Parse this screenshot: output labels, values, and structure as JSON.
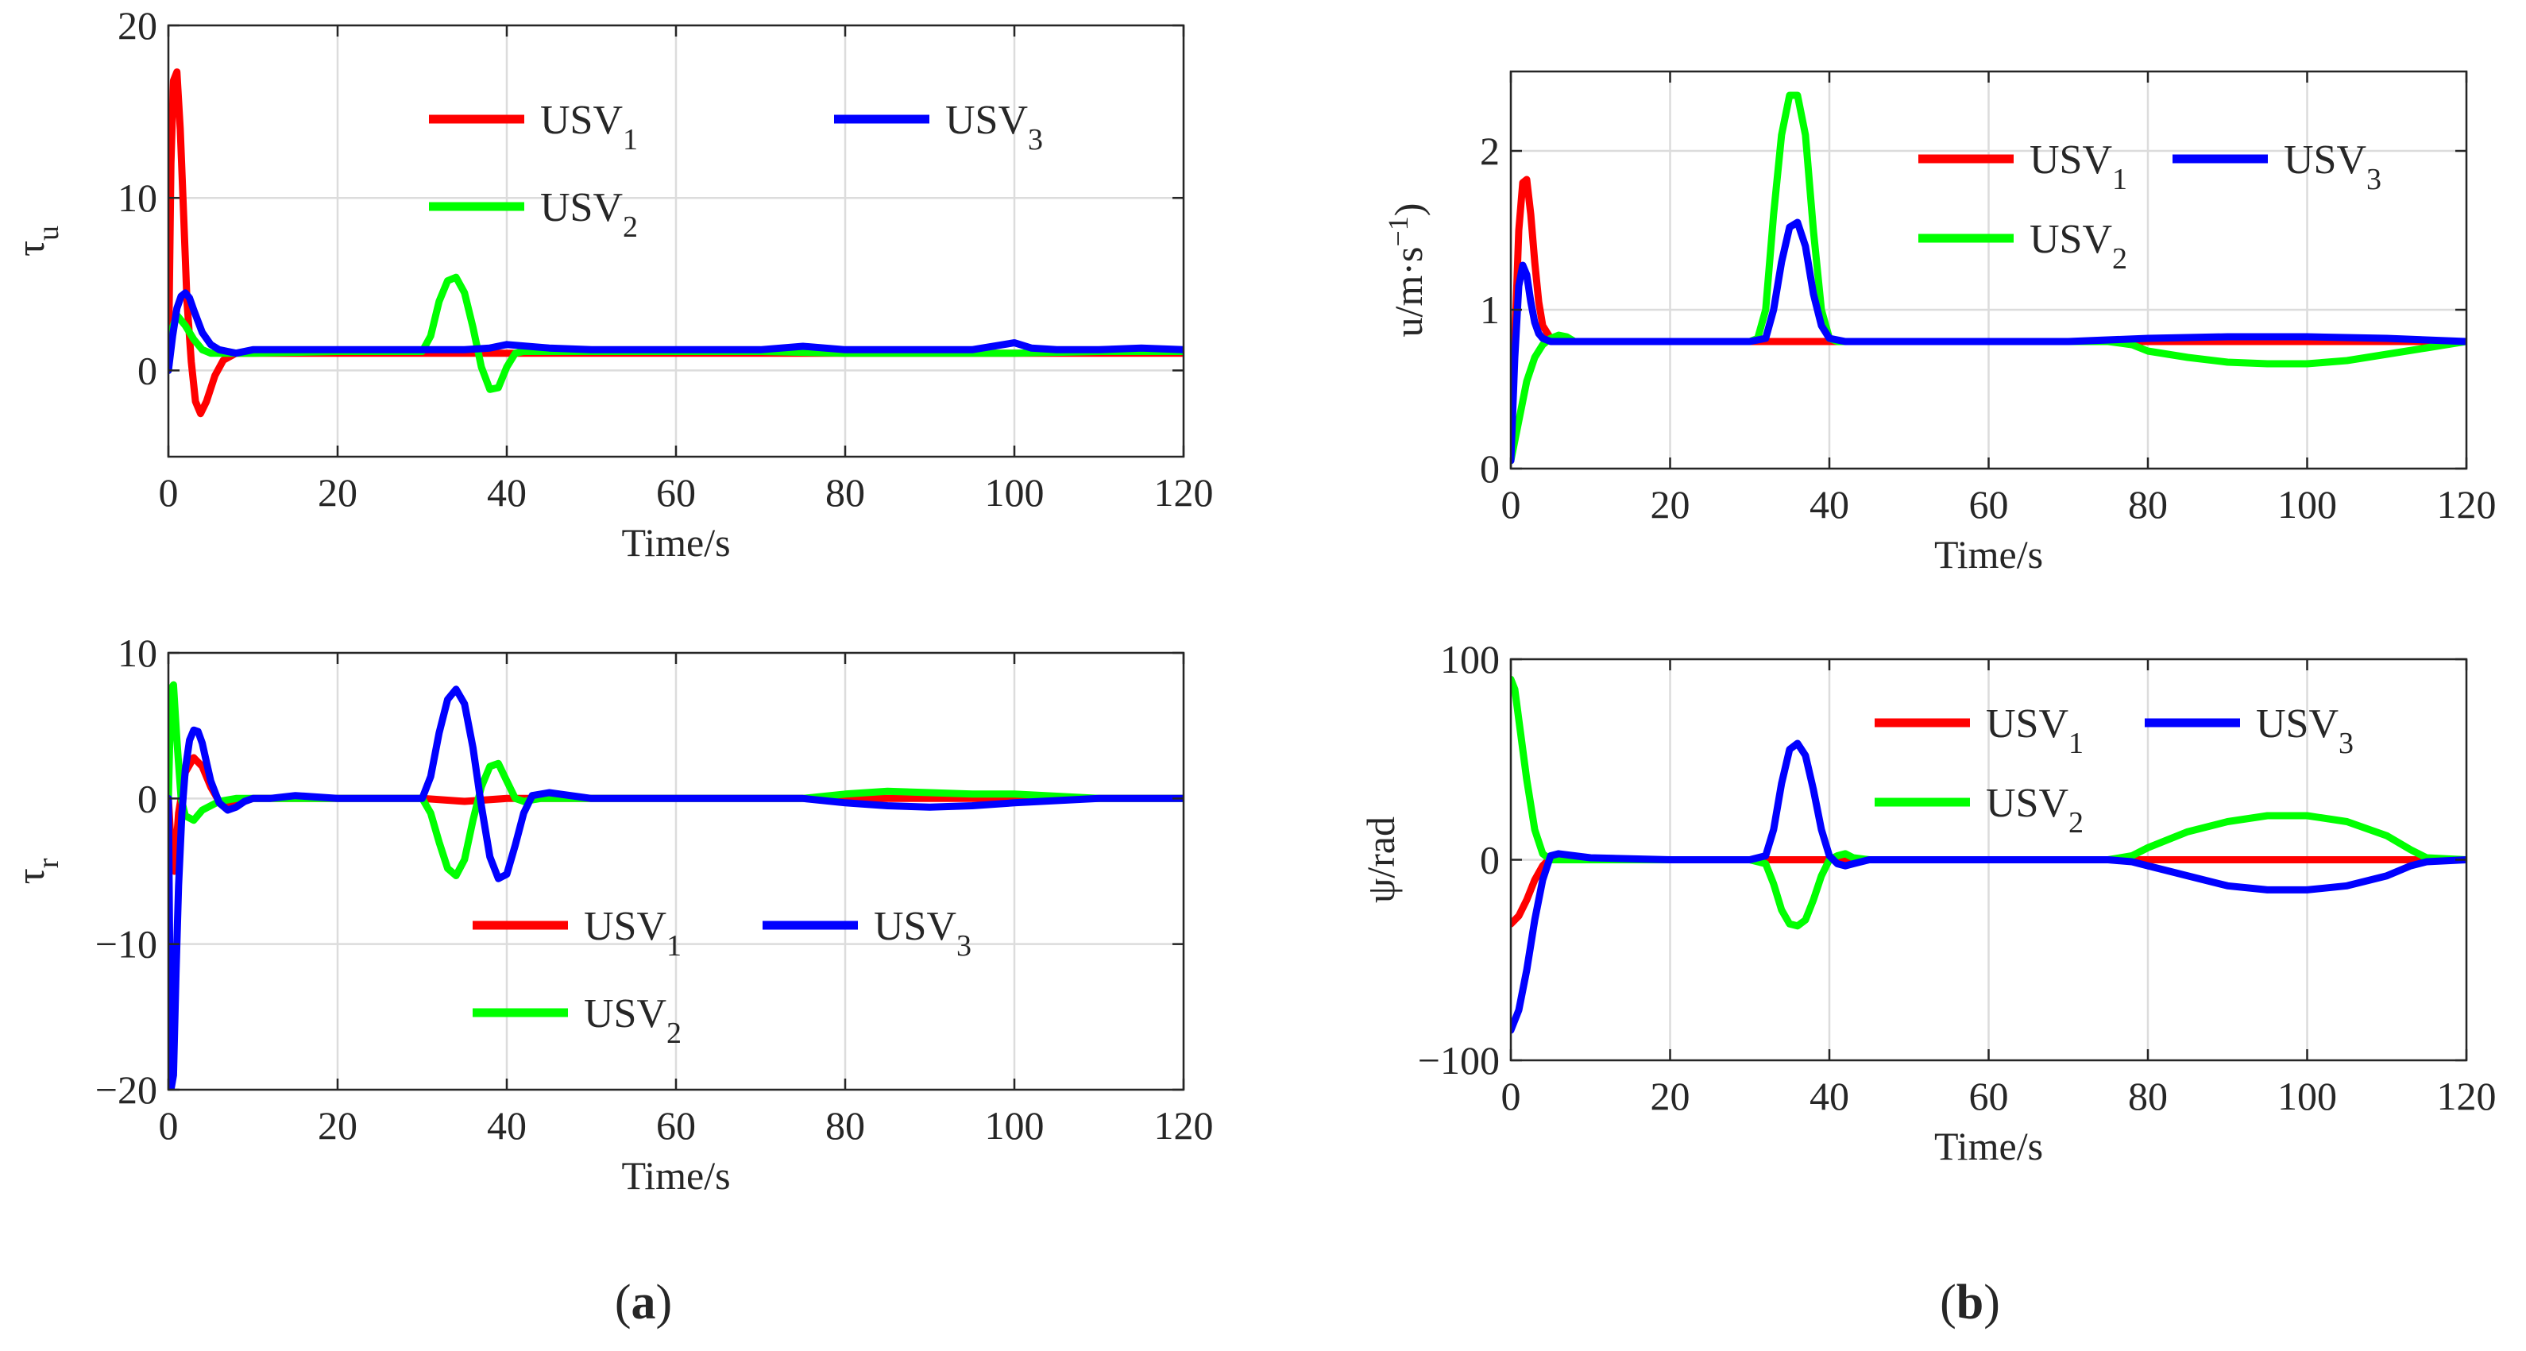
{
  "colors": {
    "usv1": "#ff0000",
    "usv2": "#00ff00",
    "usv3": "#0000ff",
    "grid": "#dcdcdc",
    "axis": "#262626"
  },
  "captions": {
    "a_open": "(",
    "a_letter": "a",
    "a_close": ")",
    "b_open": "(",
    "b_letter": "b",
    "b_close": ")"
  },
  "chart_data": [
    {
      "id": "tau_u",
      "type": "line",
      "ylabel_main": "τ",
      "ylabel_sub": "u",
      "xlabel": "Time/s",
      "xlim": [
        0,
        120
      ],
      "ylim": [
        -5,
        20
      ],
      "xticks": [
        0,
        20,
        40,
        60,
        80,
        100,
        120
      ],
      "xtick_labels": [
        "0",
        "20",
        "40",
        "60",
        "80",
        "100",
        "120"
      ],
      "yticks": [
        0,
        10,
        20
      ],
      "ytick_labels": [
        "0",
        "10",
        "20"
      ],
      "legend": [
        {
          "name": "USV",
          "sub": "1"
        },
        {
          "name": "USV",
          "sub": "2"
        },
        {
          "name": "USV",
          "sub": "3"
        }
      ],
      "series": [
        {
          "name": "USV1",
          "x": [
            0,
            0.3,
            0.6,
            1,
            1.4,
            1.8,
            2.2,
            2.7,
            3.2,
            3.8,
            4.5,
            5.5,
            6.5,
            8,
            10,
            15,
            20,
            30,
            40,
            50,
            60,
            70,
            80,
            90,
            100,
            110,
            120
          ],
          "y": [
            0,
            12,
            16.8,
            17.3,
            14,
            9,
            4,
            0.5,
            -1.8,
            -2.5,
            -1.8,
            -0.3,
            0.6,
            1,
            1,
            1,
            1,
            1,
            1,
            1,
            1,
            1,
            1,
            1,
            1,
            1,
            1
          ]
        },
        {
          "name": "USV2",
          "x": [
            0,
            0.5,
            1,
            2,
            3,
            4,
            5,
            6,
            8,
            10,
            20,
            30,
            31,
            32,
            33,
            34,
            35,
            36,
            37,
            38,
            39,
            40,
            41,
            42,
            45,
            50,
            60,
            70,
            80,
            90,
            100,
            110,
            120
          ],
          "y": [
            0,
            2.5,
            3.2,
            2.6,
            1.8,
            1.2,
            1,
            1,
            1,
            1,
            1.1,
            1.1,
            2,
            4,
            5.2,
            5.4,
            4.5,
            2.5,
            0.2,
            -1.1,
            -1,
            0.2,
            1,
            1.1,
            1.1,
            1.1,
            1.1,
            1.1,
            1,
            1,
            1,
            1.1,
            1.1
          ]
        },
        {
          "name": "USV3",
          "x": [
            0,
            0.5,
            1,
            1.5,
            2,
            2.5,
            3,
            4,
            5,
            6,
            7,
            8,
            10,
            20,
            30,
            35,
            38,
            40,
            45,
            50,
            60,
            70,
            75,
            80,
            90,
            95,
            100,
            102,
            105,
            110,
            115,
            120
          ],
          "y": [
            0,
            2,
            3.6,
            4.3,
            4.5,
            4.2,
            3.5,
            2.2,
            1.5,
            1.2,
            1.1,
            1,
            1.2,
            1.2,
            1.2,
            1.2,
            1.3,
            1.5,
            1.3,
            1.2,
            1.2,
            1.2,
            1.4,
            1.2,
            1.2,
            1.2,
            1.6,
            1.3,
            1.2,
            1.2,
            1.3,
            1.2
          ]
        }
      ]
    },
    {
      "id": "tau_r",
      "type": "line",
      "ylabel_main": "τ",
      "ylabel_sub": "r",
      "xlabel": "Time/s",
      "xlim": [
        0,
        120
      ],
      "ylim": [
        -20,
        10
      ],
      "xticks": [
        0,
        20,
        40,
        60,
        80,
        100,
        120
      ],
      "xtick_labels": [
        "0",
        "20",
        "40",
        "60",
        "80",
        "100",
        "120"
      ],
      "yticks": [
        -20,
        -10,
        0,
        10
      ],
      "ytick_labels": [
        "−20",
        "−10",
        "0",
        "10"
      ],
      "legend": [
        {
          "name": "USV",
          "sub": "1"
        },
        {
          "name": "USV",
          "sub": "2"
        },
        {
          "name": "USV",
          "sub": "3"
        }
      ],
      "series": [
        {
          "name": "USV1",
          "x": [
            0,
            0.3,
            0.7,
            1.2,
            2,
            3,
            4,
            5,
            6,
            7,
            8,
            10,
            15,
            20,
            30,
            35,
            40,
            50,
            60,
            70,
            80,
            90,
            100,
            110,
            120
          ],
          "y": [
            0,
            -3,
            -5,
            -1,
            1.8,
            2.8,
            2.2,
            0.8,
            -0.2,
            -0.6,
            -0.4,
            0,
            0,
            0,
            0,
            -0.2,
            0,
            0,
            0,
            0,
            0,
            0,
            0,
            0,
            0
          ]
        },
        {
          "name": "USV2",
          "x": [
            0,
            0.3,
            0.6,
            1,
            1.5,
            2,
            3,
            4,
            6,
            8,
            10,
            20,
            30,
            31,
            32,
            33,
            34,
            35,
            36,
            37,
            38,
            39,
            40,
            41,
            42,
            44,
            46,
            50,
            60,
            70,
            75,
            80,
            85,
            90,
            95,
            100,
            110,
            120
          ],
          "y": [
            0,
            7.5,
            7.8,
            4,
            0,
            -1.2,
            -1.5,
            -0.8,
            -0.2,
            0,
            0,
            0,
            0,
            -1,
            -3,
            -4.8,
            -5.3,
            -4.2,
            -1.5,
            0.8,
            2.2,
            2.4,
            1.2,
            0,
            -0.2,
            0,
            0,
            0,
            0,
            0,
            0,
            0.3,
            0.5,
            0.4,
            0.3,
            0.3,
            0,
            0
          ]
        },
        {
          "name": "USV3",
          "x": [
            0,
            0.3,
            0.6,
            0.9,
            1.2,
            1.6,
            2,
            2.5,
            3,
            3.5,
            4,
            4.5,
            5,
            6,
            7,
            8,
            9,
            10,
            12,
            15,
            20,
            30,
            31,
            32,
            33,
            34,
            35,
            36,
            37,
            38,
            39,
            40,
            41,
            42,
            43,
            45,
            50,
            60,
            70,
            75,
            80,
            85,
            90,
            95,
            100,
            110,
            120
          ],
          "y": [
            0,
            -20,
            -19,
            -12,
            -6,
            -1,
            2,
            4,
            4.7,
            4.6,
            3.8,
            2.5,
            1.2,
            -0.3,
            -0.8,
            -0.6,
            -0.2,
            0,
            0,
            0.2,
            0,
            0,
            1.5,
            4.5,
            6.8,
            7.5,
            6.5,
            3.5,
            -0.5,
            -4,
            -5.5,
            -5.2,
            -3.2,
            -1,
            0.2,
            0.4,
            0,
            0,
            0,
            0,
            -0.3,
            -0.5,
            -0.6,
            -0.5,
            -0.3,
            0,
            0
          ]
        }
      ]
    },
    {
      "id": "u_speed",
      "type": "line",
      "ylabel_main": "u/m·s",
      "ylabel_sup": "−1",
      "ylabel_close": ")",
      "xlabel": "Time/s",
      "xlim": [
        0,
        120
      ],
      "ylim": [
        0,
        2.5
      ],
      "xticks": [
        0,
        20,
        40,
        60,
        80,
        100,
        120
      ],
      "xtick_labels": [
        "0",
        "20",
        "40",
        "60",
        "80",
        "100",
        "120"
      ],
      "yticks": [
        0,
        1,
        2
      ],
      "ytick_labels": [
        "0",
        "1",
        "2"
      ],
      "legend": [
        {
          "name": "USV",
          "sub": "1"
        },
        {
          "name": "USV",
          "sub": "2"
        },
        {
          "name": "USV",
          "sub": "3"
        }
      ],
      "series": [
        {
          "name": "USV1",
          "x": [
            0,
            0.5,
            1,
            1.5,
            2,
            2.5,
            3,
            3.5,
            4,
            5,
            6,
            7,
            8,
            10,
            20,
            30,
            40,
            50,
            60,
            70,
            80,
            90,
            100,
            110,
            120
          ],
          "y": [
            0.05,
            0.8,
            1.5,
            1.8,
            1.82,
            1.6,
            1.3,
            1.05,
            0.9,
            0.82,
            0.8,
            0.8,
            0.8,
            0.8,
            0.8,
            0.8,
            0.8,
            0.8,
            0.8,
            0.8,
            0.8,
            0.8,
            0.8,
            0.8,
            0.8
          ]
        },
        {
          "name": "USV2",
          "x": [
            0,
            1,
            2,
            3,
            4,
            5,
            6,
            7,
            8,
            10,
            20,
            30,
            31,
            32,
            33,
            34,
            35,
            36,
            37,
            38,
            39,
            40,
            41,
            42,
            45,
            50,
            60,
            70,
            75,
            78,
            80,
            85,
            90,
            95,
            100,
            105,
            110,
            115,
            120
          ],
          "y": [
            0.05,
            0.3,
            0.55,
            0.7,
            0.78,
            0.82,
            0.84,
            0.83,
            0.8,
            0.8,
            0.8,
            0.8,
            0.82,
            1,
            1.6,
            2.1,
            2.35,
            2.35,
            2.1,
            1.5,
            1,
            0.82,
            0.8,
            0.8,
            0.8,
            0.8,
            0.8,
            0.8,
            0.8,
            0.78,
            0.74,
            0.7,
            0.67,
            0.66,
            0.66,
            0.68,
            0.72,
            0.76,
            0.8
          ]
        },
        {
          "name": "USV3",
          "x": [
            0,
            0.5,
            1,
            1.5,
            2,
            2.5,
            3,
            3.5,
            4,
            5,
            6,
            8,
            10,
            20,
            30,
            32,
            33,
            34,
            35,
            36,
            37,
            38,
            39,
            40,
            42,
            45,
            50,
            60,
            70,
            80,
            90,
            100,
            110,
            120
          ],
          "y": [
            0.05,
            0.7,
            1.15,
            1.28,
            1.22,
            1.05,
            0.92,
            0.85,
            0.82,
            0.8,
            0.8,
            0.8,
            0.8,
            0.8,
            0.8,
            0.82,
            1,
            1.3,
            1.52,
            1.55,
            1.4,
            1.1,
            0.9,
            0.82,
            0.8,
            0.8,
            0.8,
            0.8,
            0.8,
            0.82,
            0.83,
            0.83,
            0.82,
            0.8
          ]
        }
      ]
    },
    {
      "id": "psi",
      "type": "line",
      "ylabel_main": "ψ/rad",
      "xlabel": "Time/s",
      "xlim": [
        0,
        120
      ],
      "ylim": [
        -100,
        100
      ],
      "xticks": [
        0,
        20,
        40,
        60,
        80,
        100,
        120
      ],
      "xtick_labels": [
        "0",
        "20",
        "40",
        "60",
        "80",
        "100",
        "120"
      ],
      "yticks": [
        -100,
        0,
        100
      ],
      "ytick_labels": [
        "−100",
        "0",
        "100"
      ],
      "legend": [
        {
          "name": "USV",
          "sub": "1"
        },
        {
          "name": "USV",
          "sub": "2"
        },
        {
          "name": "USV",
          "sub": "3"
        }
      ],
      "series": [
        {
          "name": "USV1",
          "x": [
            0,
            1,
            2,
            3,
            4,
            5,
            6,
            8,
            10,
            20,
            30,
            40,
            50,
            60,
            70,
            80,
            90,
            100,
            110,
            120
          ],
          "y": [
            -32,
            -28,
            -20,
            -10,
            -3,
            1,
            2,
            1,
            0,
            0,
            0,
            0,
            0,
            0,
            0,
            0,
            0,
            0,
            0,
            0
          ]
        },
        {
          "name": "USV2",
          "x": [
            0,
            0.5,
            1,
            2,
            3,
            4,
            5,
            6,
            8,
            10,
            20,
            30,
            32,
            33,
            34,
            35,
            36,
            37,
            38,
            39,
            40,
            41,
            42,
            43,
            45,
            50,
            60,
            70,
            75,
            78,
            80,
            85,
            90,
            95,
            100,
            105,
            110,
            113,
            115,
            120
          ],
          "y": [
            90,
            85,
            70,
            40,
            15,
            3,
            0,
            0,
            0,
            0,
            0,
            0,
            -2,
            -12,
            -25,
            -32,
            -33,
            -30,
            -20,
            -8,
            0,
            2,
            3,
            1,
            0,
            0,
            0,
            0,
            0,
            2,
            6,
            14,
            19,
            22,
            22,
            19,
            12,
            5,
            1,
            0
          ]
        },
        {
          "name": "USV3",
          "x": [
            0,
            1,
            2,
            3,
            4,
            5,
            6,
            8,
            10,
            20,
            30,
            32,
            33,
            34,
            35,
            36,
            37,
            38,
            39,
            40,
            41,
            42,
            43,
            45,
            50,
            60,
            70,
            75,
            78,
            80,
            85,
            90,
            95,
            100,
            105,
            110,
            113,
            115,
            120
          ],
          "y": [
            -85,
            -75,
            -55,
            -30,
            -10,
            2,
            3,
            2,
            1,
            0,
            0,
            2,
            15,
            38,
            55,
            58,
            52,
            35,
            15,
            2,
            -2,
            -3,
            -2,
            0,
            0,
            0,
            0,
            0,
            -1,
            -3,
            -8,
            -13,
            -15,
            -15,
            -13,
            -8,
            -3,
            -1,
            0
          ]
        }
      ]
    }
  ]
}
